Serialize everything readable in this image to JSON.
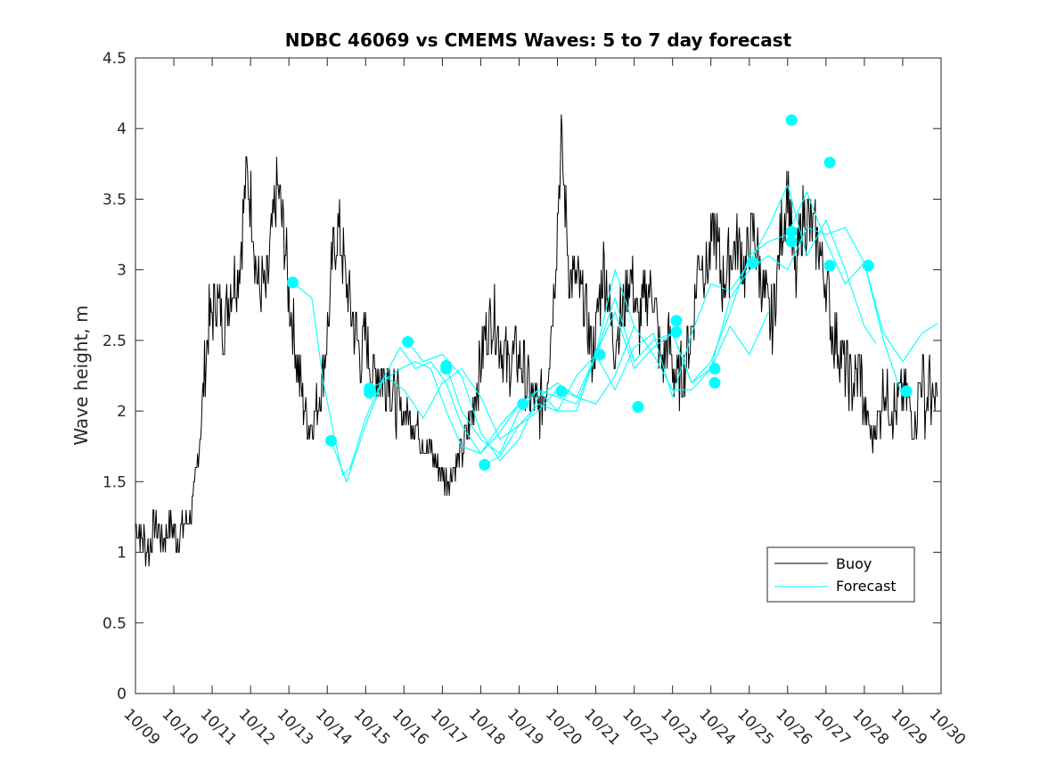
{
  "chart_data": {
    "type": "line",
    "title": "NDBC 46069 vs CMEMS Waves: 5 to 7 day forecast",
    "xlabel": "",
    "ylabel": "Wave height, m",
    "xlim": [
      0,
      21
    ],
    "ylim": [
      0,
      4.5
    ],
    "x_tick_labels": [
      "10/09",
      "10/10",
      "10/11",
      "10/12",
      "10/13",
      "10/14",
      "10/15",
      "10/16",
      "10/17",
      "10/18",
      "10/19",
      "10/20",
      "10/21",
      "10/22",
      "10/23",
      "10/24",
      "10/25",
      "10/26",
      "10/27",
      "10/28",
      "10/29",
      "10/30"
    ],
    "y_ticks": [
      0,
      0.5,
      1,
      1.5,
      2,
      2.5,
      3,
      3.5,
      4,
      4.5
    ],
    "y_tick_labels": [
      "0",
      "0.5",
      "1",
      "1.5",
      "2",
      "2.5",
      "3",
      "3.5",
      "4",
      "4.5"
    ],
    "legend_position": "bottom-right",
    "series": [
      {
        "name": "Buoy",
        "color": "#000000",
        "x": [
          0,
          0.2,
          0.35,
          0.5,
          0.7,
          0.9,
          1.1,
          1.3,
          1.5,
          1.7,
          1.9,
          2.1,
          2.3,
          2.5,
          2.7,
          2.9,
          3.05,
          3.15,
          3.25,
          3.3,
          3.4,
          3.5,
          3.7,
          3.9,
          4.0,
          4.1,
          4.2,
          4.3,
          4.4,
          4.5,
          4.6,
          4.7,
          4.9,
          5.05,
          5.15,
          5.3,
          5.5,
          5.7,
          5.9,
          6.0,
          6.1,
          6.2,
          6.3,
          6.5,
          6.6,
          6.7,
          6.9,
          7.1,
          7.3,
          7.5,
          7.7,
          7.9,
          8.1,
          8.3,
          8.5,
          8.7,
          8.9,
          9.1,
          9.3,
          9.5,
          9.7,
          9.9,
          10.1,
          10.3,
          10.5,
          10.7,
          10.9,
          11.1,
          11.3,
          11.5,
          11.7,
          11.8,
          11.9,
          12.0,
          12.1,
          12.2,
          12.3,
          12.4,
          12.5,
          12.7,
          12.9,
          13.1,
          13.3,
          13.5,
          13.7,
          13.9,
          14.1,
          14.3,
          14.5,
          14.7,
          14.9,
          15.1,
          15.3,
          15.5,
          15.7,
          15.9,
          16.0,
          16.1,
          16.2,
          16.4,
          16.6,
          16.8,
          17.0,
          17.2,
          17.4,
          17.6,
          17.8,
          18.0,
          18.15,
          18.3,
          18.5,
          18.7,
          18.9,
          19.0,
          19.1,
          19.2,
          19.4,
          19.5,
          19.6,
          19.8,
          20.0,
          20.1,
          20.2,
          20.3,
          20.4,
          20.5,
          20.6,
          20.7,
          20.8,
          20.9
        ],
        "y": [
          1.2,
          1.1,
          1.0,
          1.2,
          1.1,
          1.2,
          1.1,
          1.2,
          1.3,
          1.9,
          2.6,
          2.8,
          2.6,
          2.9,
          3.0,
          3.7,
          3.4,
          3.0,
          2.8,
          2.9,
          2.8,
          3.1,
          3.6,
          3.2,
          2.8,
          2.6,
          2.4,
          2.2,
          2.0,
          1.9,
          1.9,
          2.0,
          2.3,
          2.7,
          3.1,
          3.3,
          2.9,
          2.6,
          2.4,
          2.5,
          2.4,
          2.2,
          2.3,
          2.2,
          2.3,
          2.1,
          2.0,
          2.0,
          1.9,
          1.8,
          1.7,
          1.6,
          1.5,
          1.6,
          1.7,
          1.9,
          2.2,
          2.5,
          2.7,
          2.5,
          2.3,
          2.4,
          2.3,
          2.1,
          2.0,
          2.2,
          2.8,
          3.9,
          3.0,
          2.9,
          2.8,
          2.6,
          2.4,
          2.5,
          2.8,
          3.0,
          2.9,
          2.6,
          2.5,
          2.7,
          3.0,
          2.6,
          2.8,
          2.9,
          2.3,
          2.5,
          2.2,
          2.3,
          2.6,
          3.1,
          3.0,
          3.3,
          2.9,
          3.1,
          3.2,
          3.0,
          3.2,
          3.3,
          3.1,
          2.8,
          2.6,
          3.2,
          3.6,
          2.9,
          3.4,
          3.3,
          3.2,
          2.9,
          2.6,
          2.5,
          2.3,
          2.2,
          2.3,
          2.0,
          1.9,
          1.8,
          2.0,
          2.2,
          2.1,
          2.0,
          2.1,
          2.1,
          2.0,
          1.9,
          2.1,
          2.3,
          2.0,
          2.2,
          2.0,
          2.1
        ]
      },
      {
        "name": "Forecast",
        "color": "#00FFFF",
        "segments": [
          {
            "x": [
              4.1,
              4.6,
              4.9,
              5.2,
              5.4,
              5.6,
              6.0,
              6.4,
              6.9,
              7.3,
              7.7,
              8.1,
              8.5,
              9.0,
              9.5,
              10.0
            ],
            "y": [
              2.91,
              2.8,
              2.2,
              1.8,
              1.55,
              1.6,
              1.95,
              2.2,
              2.3,
              2.35,
              2.3,
              2.0,
              1.75,
              1.7,
              1.85,
              2.05
            ]
          },
          {
            "x": [
              5.1,
              5.5,
              6.0,
              6.5,
              7.0,
              7.5,
              8.0,
              8.5,
              9.0,
              9.5,
              10.0,
              10.5,
              11.0,
              11.5,
              12.0,
              12.5,
              13.0
            ],
            "y": [
              1.79,
              1.5,
              1.9,
              2.25,
              2.15,
              1.95,
              2.2,
              2.3,
              2.1,
              1.8,
              1.9,
              2.0,
              2.15,
              2.1,
              2.05,
              2.25,
              2.6
            ]
          },
          {
            "x": [
              6.1,
              6.4,
              6.9,
              7.3,
              7.7,
              8.1,
              8.5,
              9.0,
              9.5,
              10.0,
              10.5,
              11.0,
              11.5,
              12.0,
              12.5,
              13.0,
              13.5,
              14.0,
              14.5,
              15.0,
              15.5,
              16.0,
              16.5
            ],
            "y": [
              2.16,
              2.2,
              2.45,
              2.3,
              2.35,
              2.2,
              1.9,
              1.7,
              1.9,
              2.05,
              2.15,
              2.0,
              2.0,
              2.4,
              3.0,
              2.6,
              2.4,
              2.15,
              2.15,
              2.3,
              2.6,
              2.4,
              2.7
            ]
          },
          {
            "x": [
              7.1,
              7.5,
              8.0,
              8.5,
              9.0,
              9.5,
              10.0,
              10.5,
              11.0,
              11.5,
              12.0,
              12.5,
              13.0,
              13.5,
              14.0,
              14.5,
              15.0,
              15.5,
              16.0,
              16.5,
              17.0,
              17.5,
              18.0,
              18.5,
              19.0,
              19.5,
              20.0,
              20.5,
              20.9
            ],
            "y": [
              2.49,
              2.35,
              2.4,
              2.25,
              1.85,
              1.65,
              1.8,
              2.1,
              2.2,
              2.1,
              2.4,
              2.8,
              2.35,
              2.5,
              2.55,
              2.2,
              2.3,
              2.8,
              3.0,
              3.1,
              3.0,
              3.3,
              3.25,
              3.3,
              3.05,
              2.55,
              2.35,
              2.55,
              2.62
            ]
          },
          {
            "x": [
              8.1,
              8.5,
              9.0,
              9.5,
              10.0,
              10.5,
              11.0,
              11.5,
              12.0,
              12.5,
              13.0,
              13.5,
              14.0,
              14.5,
              15.0,
              15.5,
              16.0,
              16.5,
              17.0,
              17.5,
              18.0,
              18.5,
              19.0,
              19.5,
              20.0
            ],
            "y": [
              2.32,
              2.0,
              1.8,
              1.7,
              2.0,
              2.15,
              2.1,
              2.05,
              2.4,
              2.7,
              2.3,
              2.45,
              2.55,
              2.2,
              2.35,
              2.7,
              3.1,
              3.2,
              3.25,
              3.55,
              3.2,
              2.9,
              3.05,
              2.5,
              2.1
            ]
          },
          {
            "x": [
              9.1,
              9.5,
              10.0,
              10.5,
              11.0,
              11.5,
              12.0,
              12.5,
              13.0,
              13.5,
              14.0,
              14.5,
              15.0,
              15.5,
              16.0,
              16.5,
              17.0,
              17.5,
              18.0,
              18.5,
              19.0,
              19.3
            ],
            "y": [
              1.62,
              1.68,
              1.9,
              2.05,
              2.0,
              2.25,
              2.4,
              2.15,
              2.45,
              2.55,
              2.1,
              2.55,
              2.9,
              2.85,
              3.05,
              3.3,
              3.6,
              3.1,
              3.35,
              3.0,
              2.6,
              2.48
            ]
          }
        ],
        "marker_points": {
          "x": [
            4.1,
            5.1,
            6.1,
            6.1,
            7.1,
            8.1,
            8.1,
            9.1,
            10.1,
            11.1,
            12.1,
            13.1,
            14.1,
            14.1,
            15.1,
            15.1,
            16.1,
            17.1,
            17.1,
            17.1,
            18.1,
            18.1,
            19.1,
            20.1
          ],
          "y": [
            2.91,
            1.79,
            2.16,
            2.13,
            2.49,
            2.32,
            2.3,
            1.62,
            2.05,
            2.14,
            2.4,
            2.03,
            2.64,
            2.56,
            2.3,
            2.2,
            3.05,
            3.27,
            3.2,
            4.06,
            3.76,
            3.03,
            3.03,
            2.14
          ]
        }
      }
    ]
  }
}
